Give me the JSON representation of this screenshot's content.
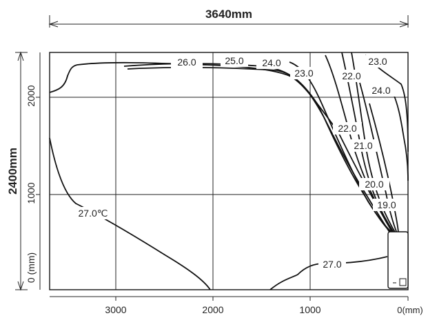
{
  "dimensions": {
    "width_label": "3640mm",
    "height_label": "2400mm"
  },
  "axes": {
    "x_ticks": [
      "3000",
      "2000",
      "1000",
      "0(mm)"
    ],
    "y_ticks": [
      "0 (mm)",
      "1000",
      "2000"
    ]
  },
  "contour_labels": {
    "c260": "26.0",
    "c250": "25.0",
    "c240_top": "24.0",
    "c230": "23.0",
    "c220_top": "22.0",
    "c230_right": "23.0",
    "c240_right": "24.0",
    "c220_mid": "22.0",
    "c210": "21.0",
    "c200": "20.0",
    "c190": "19.0",
    "c270_left": "27.0℃",
    "c270_bottom": "27.0"
  }
}
